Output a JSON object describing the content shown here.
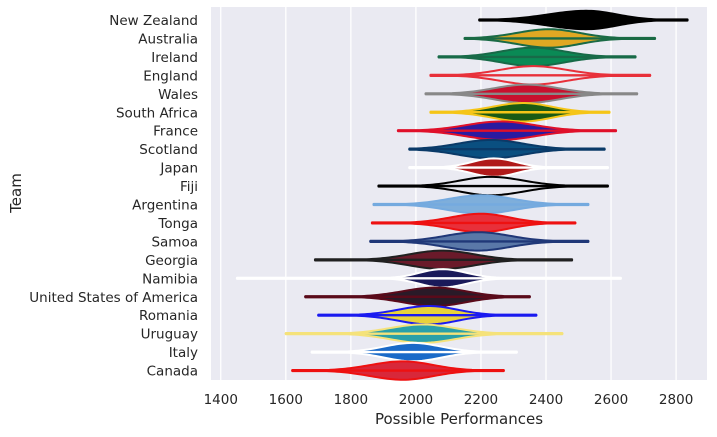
{
  "chart_data": {
    "type": "violin",
    "title": "",
    "xlabel": "Possible Performances",
    "ylabel": "Team",
    "xlim": [
      1370,
      2895
    ],
    "xticks": [
      1400,
      1600,
      1800,
      2000,
      2200,
      2400,
      2600,
      2800
    ],
    "grid": true,
    "legend": "none",
    "colors": {
      "background": "#eaeaf2",
      "grid": "#ffffff",
      "text": "#262626"
    },
    "teams": [
      {
        "name": "New Zealand",
        "fill": "#000000",
        "edge": "#000000",
        "min": 2195,
        "max": 2835,
        "q1": 2430,
        "median": 2515,
        "q3": 2600,
        "mode": 2525,
        "wL": 190,
        "wR": 150
      },
      {
        "name": "Australia",
        "fill": "#e0a823",
        "edge": "#1a6a45",
        "min": 2150,
        "max": 2735,
        "q1": 2345,
        "median": 2410,
        "q3": 2470,
        "mode": 2410,
        "wL": 160,
        "wR": 150
      },
      {
        "name": "Ireland",
        "fill": "#0a8a55",
        "edge": "#186a48",
        "min": 2070,
        "max": 2675,
        "q1": 2300,
        "median": 2360,
        "q3": 2425,
        "mode": 2360,
        "wL": 155,
        "wR": 155
      },
      {
        "name": "England",
        "fill": "#eaeaf2",
        "edge": "#e8303a",
        "min": 2045,
        "max": 2720,
        "q1": 2290,
        "median": 2350,
        "q3": 2425,
        "mode": 2360,
        "wL": 160,
        "wR": 165
      },
      {
        "name": "Wales",
        "fill": "#c8102e",
        "edge": "#888888",
        "min": 2030,
        "max": 2680,
        "q1": 2280,
        "median": 2340,
        "q3": 2405,
        "mode": 2340,
        "wL": 160,
        "wR": 160
      },
      {
        "name": "South Africa",
        "fill": "#1a5a14",
        "edge": "#f5c518",
        "min": 2045,
        "max": 2595,
        "q1": 2270,
        "median": 2330,
        "q3": 2390,
        "mode": 2330,
        "wL": 150,
        "wR": 140
      },
      {
        "name": "France",
        "fill": "#2a1aa0",
        "edge": "#e0102a",
        "min": 1945,
        "max": 2615,
        "q1": 2185,
        "median": 2260,
        "q3": 2340,
        "mode": 2260,
        "wL": 170,
        "wR": 170
      },
      {
        "name": "Scotland",
        "fill": "#0a4f80",
        "edge": "#0a3a68",
        "min": 1980,
        "max": 2580,
        "q1": 2170,
        "median": 2230,
        "q3": 2300,
        "mode": 2230,
        "wL": 160,
        "wR": 160
      },
      {
        "name": "Japan",
        "fill": "#b01a1a",
        "edge": "#ffffff",
        "min": 1980,
        "max": 2590,
        "q1": 2190,
        "median": 2240,
        "q3": 2290,
        "mode": 2240,
        "wL": 110,
        "wR": 110
      },
      {
        "name": "Fiji",
        "fill": "#eaeaf2",
        "edge": "#000000",
        "min": 1885,
        "max": 2590,
        "q1": 2160,
        "median": 2230,
        "q3": 2300,
        "mode": 2230,
        "wL": 150,
        "wR": 160
      },
      {
        "name": "Argentina",
        "fill": "#7eaedb",
        "edge": "#75aadf",
        "min": 1870,
        "max": 2530,
        "q1": 2130,
        "median": 2200,
        "q3": 2270,
        "mode": 2200,
        "wL": 160,
        "wR": 160
      },
      {
        "name": "Tonga",
        "fill": "#e8303a",
        "edge": "#ee1111",
        "min": 1865,
        "max": 2490,
        "q1": 2130,
        "median": 2200,
        "q3": 2265,
        "mode": 2200,
        "wL": 150,
        "wR": 140
      },
      {
        "name": "Samoa",
        "fill": "#5a78a8",
        "edge": "#203878",
        "min": 1860,
        "max": 2530,
        "q1": 2120,
        "median": 2190,
        "q3": 2260,
        "mode": 2190,
        "wL": 160,
        "wR": 160
      },
      {
        "name": "Georgia",
        "fill": "#6a1a2a",
        "edge": "#202020",
        "min": 1690,
        "max": 2480,
        "q1": 2010,
        "median": 2080,
        "q3": 2150,
        "mode": 2080,
        "wL": 160,
        "wR": 160
      },
      {
        "name": "Namibia",
        "fill": "#1a1a5a",
        "edge": "#ffffff",
        "min": 1450,
        "max": 2630,
        "q1": 2010,
        "median": 2080,
        "q3": 2160,
        "mode": 2080,
        "wL": 110,
        "wR": 120
      },
      {
        "name": "United States of America",
        "fill": "#2a1a28",
        "edge": "#5a0a1a",
        "min": 1660,
        "max": 2350,
        "q1": 2000,
        "median": 2060,
        "q3": 2130,
        "mode": 2060,
        "wL": 160,
        "wR": 150
      },
      {
        "name": "Romania",
        "fill": "#e8d23a",
        "edge": "#1a1af0",
        "min": 1700,
        "max": 2370,
        "q1": 1990,
        "median": 2050,
        "q3": 2110,
        "mode": 2040,
        "wL": 150,
        "wR": 140
      },
      {
        "name": "Uruguay",
        "fill": "#2aa0a8",
        "edge": "#f5e27a",
        "min": 1600,
        "max": 2450,
        "q1": 1950,
        "median": 2020,
        "q3": 2090,
        "mode": 2020,
        "wL": 160,
        "wR": 160
      },
      {
        "name": "Italy",
        "fill": "#1a6ac8",
        "edge": "#ffffff",
        "min": 1680,
        "max": 2310,
        "q1": 1930,
        "median": 1990,
        "q3": 2060,
        "mode": 1990,
        "wL": 140,
        "wR": 140
      },
      {
        "name": "Canada",
        "fill": "#d8283a",
        "edge": "#ee1111",
        "min": 1620,
        "max": 2270,
        "q1": 1890,
        "median": 1960,
        "q3": 2030,
        "mode": 1960,
        "wL": 160,
        "wR": 150
      }
    ]
  }
}
